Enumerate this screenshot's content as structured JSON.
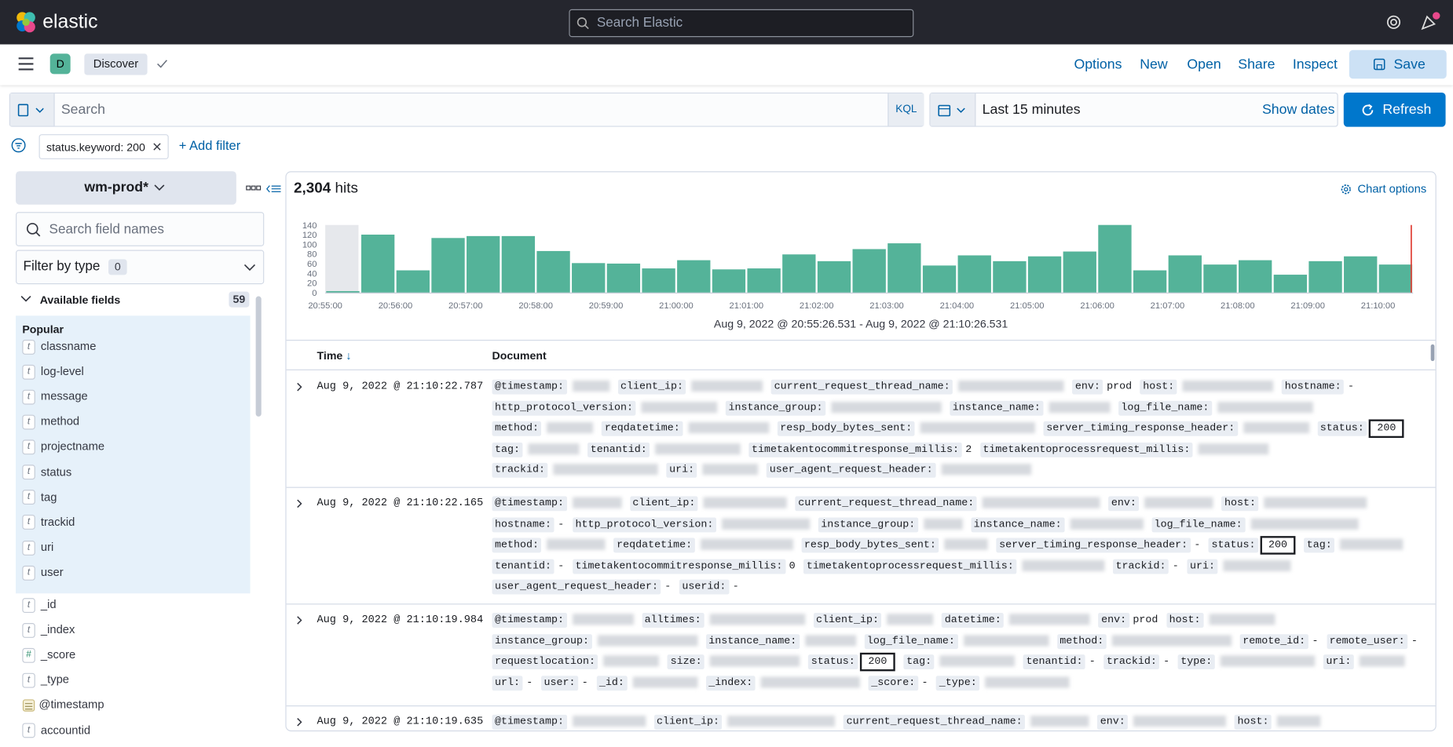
{
  "header": {
    "brand": "elastic",
    "search_placeholder": "Search Elastic"
  },
  "nav": {
    "space": "D",
    "app": "Discover",
    "menu": [
      "Options",
      "New",
      "Open",
      "Share",
      "Inspect"
    ],
    "save": "Save"
  },
  "query": {
    "placeholder": "Search",
    "language": "KQL",
    "time_range": "Last 15 minutes",
    "show_dates": "Show dates",
    "refresh": "Refresh"
  },
  "filters": {
    "pills": [
      "status.keyword: 200"
    ],
    "add": "+ Add filter"
  },
  "sidebar": {
    "index_pattern": "wm-prod*",
    "search_placeholder": "Search field names",
    "filter_by_type": "Filter by type",
    "filter_count": 0,
    "available_fields": "Available fields",
    "available_count": 59,
    "popular_label": "Popular",
    "popular": [
      {
        "icon": "t",
        "name": "classname"
      },
      {
        "icon": "t",
        "name": "log-level"
      },
      {
        "icon": "t",
        "name": "message"
      },
      {
        "icon": "t",
        "name": "method"
      },
      {
        "icon": "t",
        "name": "projectname"
      },
      {
        "icon": "t",
        "name": "status"
      },
      {
        "icon": "t",
        "name": "tag"
      },
      {
        "icon": "t",
        "name": "trackid"
      },
      {
        "icon": "t",
        "name": "uri"
      },
      {
        "icon": "t",
        "name": "user"
      }
    ],
    "other": [
      {
        "icon": "t",
        "name": "_id"
      },
      {
        "icon": "t",
        "name": "_index"
      },
      {
        "icon": "#",
        "name": "_score"
      },
      {
        "icon": "t",
        "name": "_type"
      },
      {
        "kind": "date",
        "name": "@timestamp"
      },
      {
        "icon": "t",
        "name": "accountid"
      }
    ]
  },
  "results": {
    "hits": "2,304",
    "hits_label": "hits",
    "chart_options": "Chart options",
    "range_label": "Aug 9, 2022 @ 20:55:26.531 - Aug 9, 2022 @ 21:10:26.531",
    "columns": [
      "Time",
      "Document"
    ],
    "documents": [
      {
        "time": "Aug 9, 2022 @ 21:10:22.787",
        "fields": [
          {
            "name": "@timestamp:"
          },
          {
            "name": "client_ip:"
          },
          {
            "name": "current_request_thread_name:"
          },
          {
            "name": "env:",
            "value": "prod"
          },
          {
            "name": "host:"
          },
          {
            "name": "hostname:",
            "value": "-"
          },
          {
            "name": "http_protocol_version:"
          },
          {
            "name": "instance_group:"
          },
          {
            "name": "instance_name:"
          },
          {
            "name": "log_file_name:"
          },
          {
            "name": "method:"
          },
          {
            "name": "reqdatetime:"
          },
          {
            "name": "resp_body_bytes_sent:"
          },
          {
            "name": "server_timing_response_header:"
          },
          {
            "name": "status:",
            "value": "200",
            "highlight": true
          },
          {
            "name": "tag:"
          },
          {
            "name": "tenantid:"
          },
          {
            "name": "timetakentocommitresponse_millis:",
            "value": "2"
          },
          {
            "name": "timetakentoprocessrequest_millis:"
          },
          {
            "name": "trackid:"
          },
          {
            "name": "uri:"
          },
          {
            "name": "user_agent_request_header:"
          }
        ]
      },
      {
        "time": "Aug 9, 2022 @ 21:10:22.165",
        "fields": [
          {
            "name": "@timestamp:"
          },
          {
            "name": "client_ip:"
          },
          {
            "name": "current_request_thread_name:"
          },
          {
            "name": "env:"
          },
          {
            "name": "host:"
          },
          {
            "name": "hostname:",
            "value": "-"
          },
          {
            "name": "http_protocol_version:"
          },
          {
            "name": "instance_group:"
          },
          {
            "name": "instance_name:"
          },
          {
            "name": "log_file_name:"
          },
          {
            "name": "method:"
          },
          {
            "name": "reqdatetime:"
          },
          {
            "name": "resp_body_bytes_sent:"
          },
          {
            "name": "server_timing_response_header:",
            "value": "-"
          },
          {
            "name": "status:",
            "value": "200",
            "highlight": true
          },
          {
            "name": "tag:"
          },
          {
            "name": "tenantid:",
            "value": "-"
          },
          {
            "name": "timetakentocommitresponse_millis:",
            "value": "0"
          },
          {
            "name": "timetakentoprocessrequest_millis:"
          },
          {
            "name": "trackid:",
            "value": "-"
          },
          {
            "name": "uri:"
          },
          {
            "name": "user_agent_request_header:",
            "value": "-"
          },
          {
            "name": "userid:",
            "value": "-"
          }
        ]
      },
      {
        "time": "Aug 9, 2022 @ 21:10:19.984",
        "fields": [
          {
            "name": "@timestamp:"
          },
          {
            "name": "alltimes:"
          },
          {
            "name": "client_ip:"
          },
          {
            "name": "datetime:"
          },
          {
            "name": "env:",
            "value": "prod"
          },
          {
            "name": "host:"
          },
          {
            "name": "instance_group:"
          },
          {
            "name": "instance_name:"
          },
          {
            "name": "log_file_name:"
          },
          {
            "name": "method:"
          },
          {
            "name": "remote_id:",
            "value": "-"
          },
          {
            "name": "remote_user:",
            "value": "-"
          },
          {
            "name": "requestlocation:"
          },
          {
            "name": "size:"
          },
          {
            "name": "status:",
            "value": "200",
            "highlight": true
          },
          {
            "name": "tag:"
          },
          {
            "name": "tenantid:",
            "value": "-"
          },
          {
            "name": "trackid:",
            "value": "-"
          },
          {
            "name": "type:"
          },
          {
            "name": "uri:"
          },
          {
            "name": "url:",
            "value": "-"
          },
          {
            "name": "user:",
            "value": "-"
          },
          {
            "name": "_id:"
          },
          {
            "name": "_index:"
          },
          {
            "name": "_score:",
            "value": "-"
          },
          {
            "name": "_type:"
          }
        ]
      },
      {
        "time": "Aug 9, 2022 @ 21:10:19.635",
        "fields": [
          {
            "name": "@timestamp:"
          },
          {
            "name": "client_ip:"
          },
          {
            "name": "current_request_thread_name:"
          },
          {
            "name": "env:"
          },
          {
            "name": "host:"
          }
        ]
      }
    ]
  },
  "histogram": {
    "color": "#54b399",
    "values": [
      3,
      120,
      46,
      113,
      117,
      117,
      86,
      61,
      60,
      50,
      67,
      48,
      50,
      79,
      65,
      90,
      102,
      56,
      77,
      65,
      75,
      85,
      140,
      46,
      77,
      58,
      67,
      37,
      65,
      75,
      58
    ],
    "ylim": [
      0,
      140
    ],
    "yticks": [
      0,
      20,
      40,
      60,
      80,
      100,
      120,
      140
    ],
    "xlabels": [
      "20:55:00",
      "20:56:00",
      "20:57:00",
      "20:58:00",
      "20:59:00",
      "21:00:00",
      "21:01:00",
      "21:02:00",
      "21:03:00",
      "21:04:00",
      "21:05:00",
      "21:06:00",
      "21:07:00",
      "21:08:00",
      "21:09:00",
      "21:10:00"
    ]
  }
}
